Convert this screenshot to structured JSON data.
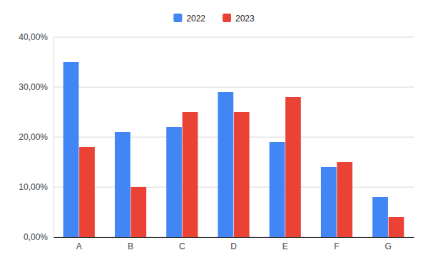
{
  "chart_data": {
    "type": "bar",
    "categories": [
      "A",
      "B",
      "C",
      "D",
      "E",
      "F",
      "G"
    ],
    "series": [
      {
        "name": "2022",
        "color": "#4285f4",
        "values": [
          35,
          21,
          22,
          29,
          19,
          14,
          8
        ]
      },
      {
        "name": "2023",
        "color": "#ea4335",
        "values": [
          18,
          10,
          25,
          25,
          28,
          15,
          4
        ]
      }
    ],
    "ylim": [
      0,
      40
    ],
    "yticks": [
      {
        "value": 0,
        "label": "0,00%"
      },
      {
        "value": 10,
        "label": "10,00%"
      },
      {
        "value": 20,
        "label": "20,00%"
      },
      {
        "value": 30,
        "label": "30,00%"
      },
      {
        "value": 40,
        "label": "40,00%"
      }
    ],
    "grid": true,
    "legend": "top"
  }
}
